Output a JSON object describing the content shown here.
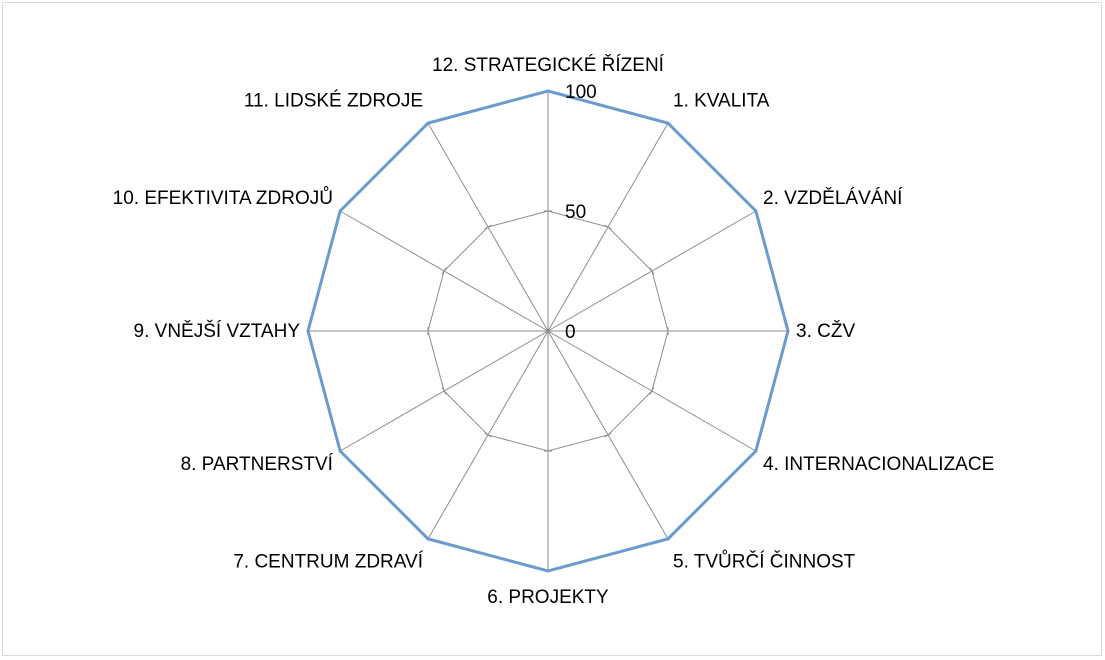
{
  "chart_data": {
    "type": "radar",
    "categories": [
      "12. STRATEGICKÉ ŘÍZENÍ",
      "1. KVALITA",
      "2. VZDĚLÁVÁNÍ",
      "3. CŽV",
      "4. INTERNACIONALIZACE",
      "5. TVŮRČÍ ČINNOST",
      "6. PROJEKTY",
      "7. CENTRUM ZDRAVÍ",
      "8. PARTNERSTVÍ",
      "9. VNĚJŠÍ VZTAHY",
      "10. EFEKTIVITA ZDROJŮ",
      "11. LIDSKÉ ZDROJE"
    ],
    "series": [
      {
        "values": [
          100,
          100,
          100,
          100,
          100,
          100,
          100,
          100,
          100,
          100,
          100,
          100
        ]
      }
    ],
    "ticks": [
      "0",
      "50",
      "100"
    ],
    "rlim": [
      0,
      100
    ],
    "grid": true,
    "legend": "none",
    "colors": {
      "series": "#6a9bcb",
      "grid": "#8c8c8c"
    }
  }
}
